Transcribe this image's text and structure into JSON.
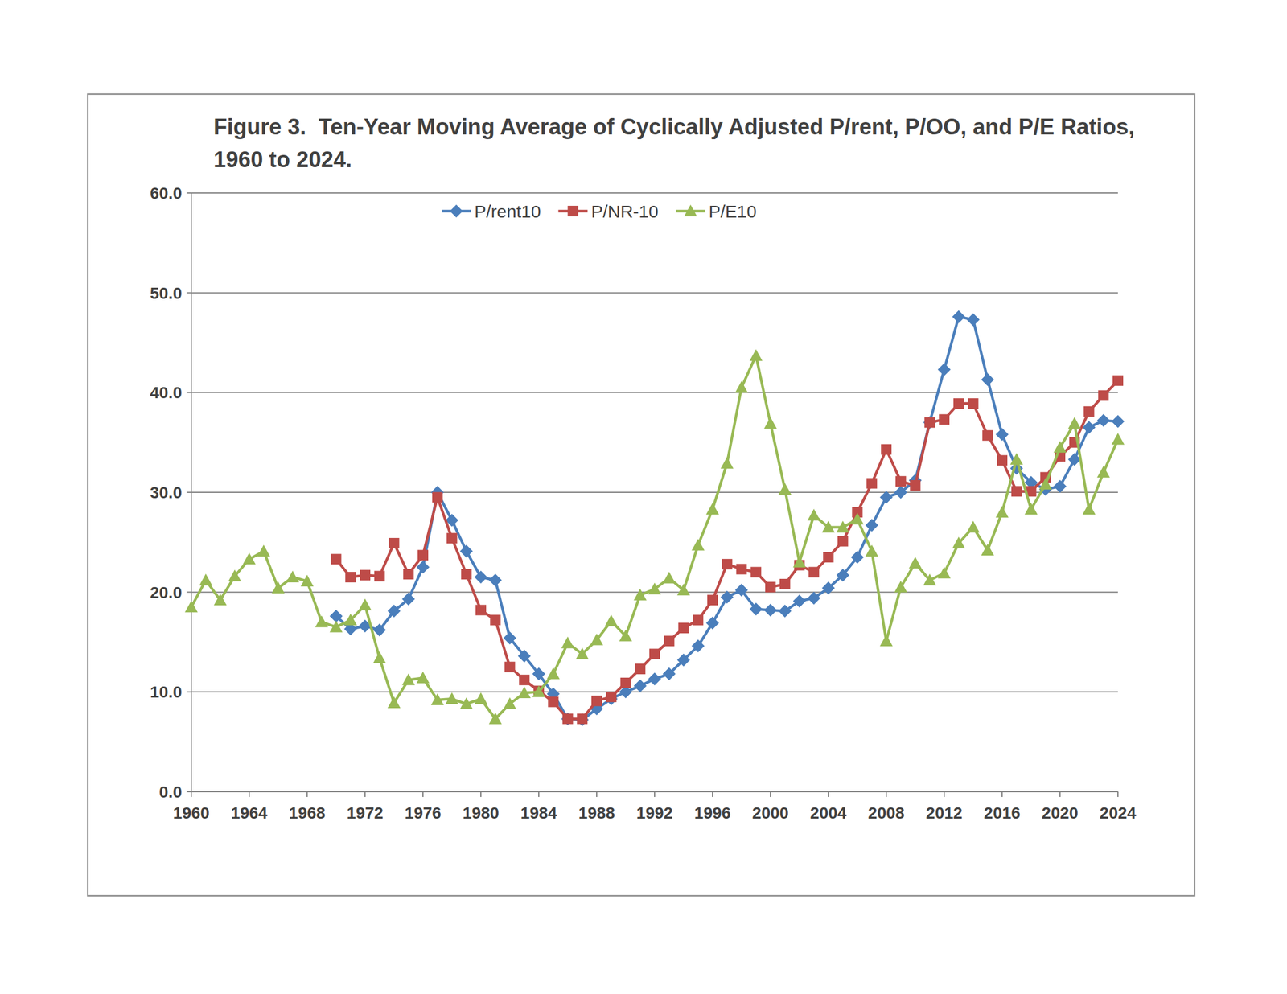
{
  "chart_data": {
    "type": "line",
    "title": "Figure 3.  Ten-Year Moving Average of Cyclically Adjusted P/rent, P/OO, and P/E Ratios, 1960 to 2024.",
    "x": [
      1960,
      1961,
      1962,
      1963,
      1964,
      1965,
      1966,
      1967,
      1968,
      1969,
      1970,
      1971,
      1972,
      1973,
      1974,
      1975,
      1976,
      1977,
      1978,
      1979,
      1980,
      1981,
      1982,
      1983,
      1984,
      1985,
      1986,
      1987,
      1988,
      1989,
      1990,
      1991,
      1992,
      1993,
      1994,
      1995,
      1996,
      1997,
      1998,
      1999,
      2000,
      2001,
      2002,
      2003,
      2004,
      2005,
      2006,
      2007,
      2008,
      2009,
      2010,
      2011,
      2012,
      2013,
      2014,
      2015,
      2016,
      2017,
      2018,
      2019,
      2020,
      2021,
      2022,
      2023,
      2024
    ],
    "series": [
      {
        "name": "P/rent10",
        "color": "#4a7ebb",
        "marker": "diamond",
        "values": [
          null,
          null,
          null,
          null,
          null,
          null,
          null,
          null,
          null,
          null,
          17.6,
          16.3,
          16.6,
          16.2,
          18.1,
          19.3,
          22.5,
          30.0,
          27.2,
          24.1,
          21.5,
          21.2,
          15.4,
          13.6,
          11.8,
          9.8,
          7.3,
          7.2,
          8.3,
          9.3,
          10.0,
          10.6,
          11.3,
          11.8,
          13.2,
          14.6,
          16.9,
          19.5,
          20.2,
          18.3,
          18.2,
          18.1,
          19.1,
          19.4,
          20.4,
          21.7,
          23.5,
          26.7,
          29.5,
          30.0,
          31.2,
          37.0,
          42.3,
          47.6,
          47.3,
          41.3,
          35.8,
          32.4,
          31.0,
          30.3,
          30.6,
          33.3,
          36.5,
          37.2,
          37.1
        ]
      },
      {
        "name": "P/NR-10",
        "color": "#be4b48",
        "marker": "square",
        "values": [
          null,
          null,
          null,
          null,
          null,
          null,
          null,
          null,
          null,
          null,
          23.3,
          21.5,
          21.7,
          21.6,
          24.9,
          21.8,
          23.7,
          29.5,
          25.4,
          21.8,
          18.2,
          17.2,
          12.5,
          11.2,
          10.1,
          9.0,
          7.3,
          7.3,
          9.1,
          9.5,
          10.9,
          12.3,
          13.8,
          15.1,
          16.4,
          17.2,
          19.2,
          22.8,
          22.3,
          22.0,
          20.5,
          20.8,
          22.7,
          22.0,
          23.5,
          25.1,
          28.0,
          30.9,
          34.3,
          31.1,
          30.7,
          37.0,
          37.3,
          38.9,
          38.9,
          35.7,
          33.2,
          30.1,
          30.1,
          31.5,
          33.6,
          35.0,
          38.1,
          39.7,
          41.2
        ]
      },
      {
        "name": "P/E10",
        "color": "#98b954",
        "marker": "triangle",
        "values": [
          18.5,
          21.2,
          19.2,
          21.6,
          23.3,
          24.1,
          20.4,
          21.5,
          21.1,
          17.0,
          16.5,
          17.2,
          18.7,
          13.4,
          8.9,
          11.2,
          11.4,
          9.2,
          9.3,
          8.8,
          9.3,
          7.3,
          8.8,
          9.9,
          10.0,
          11.8,
          14.9,
          13.8,
          15.2,
          17.1,
          15.6,
          19.7,
          20.3,
          21.4,
          20.2,
          24.7,
          28.3,
          32.9,
          40.5,
          43.7,
          36.9,
          30.3,
          23.0,
          27.7,
          26.5,
          26.5,
          27.3,
          24.1,
          15.1,
          20.5,
          22.9,
          21.2,
          21.9,
          24.9,
          26.5,
          24.2,
          28.0,
          33.3,
          28.3,
          30.8,
          34.5,
          36.9,
          28.3,
          32.0,
          35.3
        ]
      }
    ],
    "xlim": [
      1960,
      2024
    ],
    "xticks": [
      1960,
      1964,
      1968,
      1972,
      1976,
      1980,
      1984,
      1988,
      1992,
      1996,
      2000,
      2004,
      2008,
      2012,
      2016,
      2020,
      2024
    ],
    "ylim": [
      0,
      60
    ],
    "yticks": [
      {
        "value": 0,
        "label": "0.0"
      },
      {
        "value": 10,
        "label": "10.0"
      },
      {
        "value": 20,
        "label": "20.0"
      },
      {
        "value": 30,
        "label": "30.0"
      },
      {
        "value": 40,
        "label": "40.0"
      },
      {
        "value": 50,
        "label": "50.0"
      },
      {
        "value": 60,
        "label": "60.0"
      }
    ],
    "grid": true,
    "legend": "top"
  }
}
